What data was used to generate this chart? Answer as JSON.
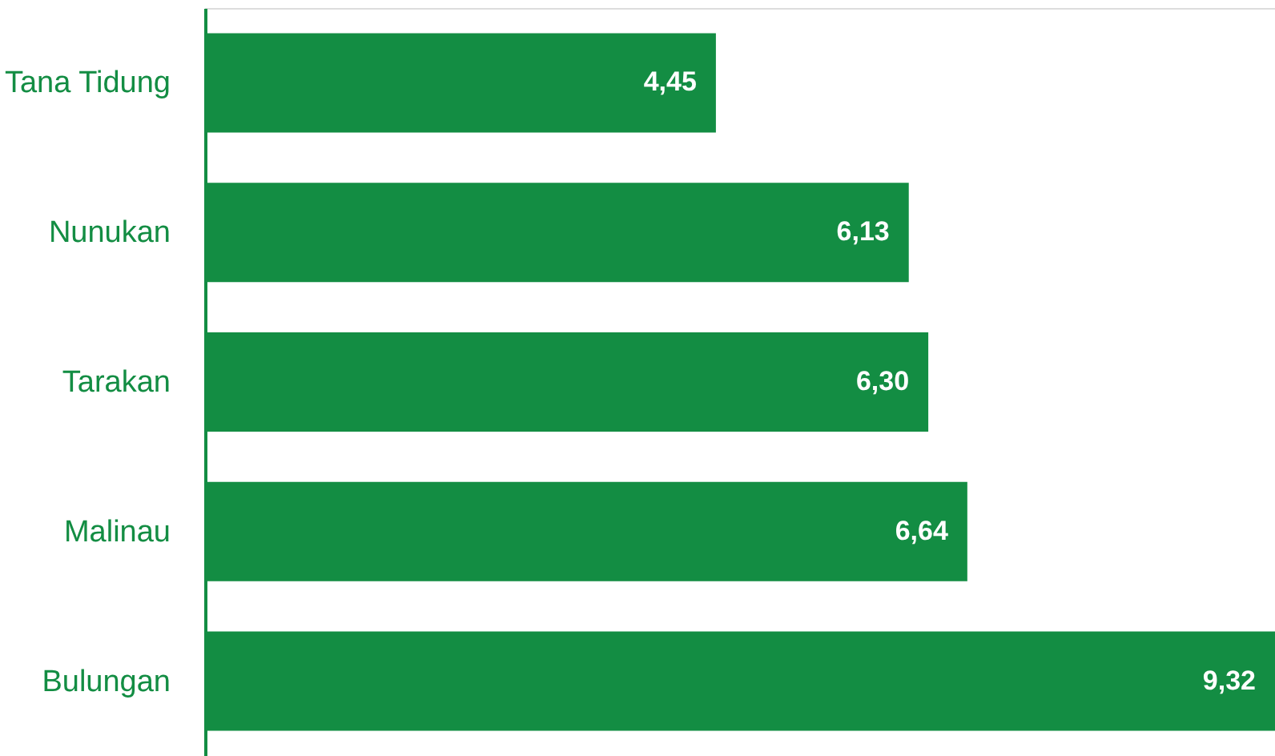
{
  "chart_data": {
    "type": "bar",
    "orientation": "horizontal",
    "categories": [
      "Tana Tidung",
      "Nunukan",
      "Tarakan",
      "Malinau",
      "Bulungan"
    ],
    "values": [
      4.45,
      6.13,
      6.3,
      6.64,
      9.32
    ],
    "value_labels": [
      "4,45",
      "6,13",
      "6,30",
      "6,64",
      "9,32"
    ],
    "color": "#138d43",
    "xlim": [
      0,
      9.32
    ],
    "grid": false,
    "tick_labels": "y"
  }
}
